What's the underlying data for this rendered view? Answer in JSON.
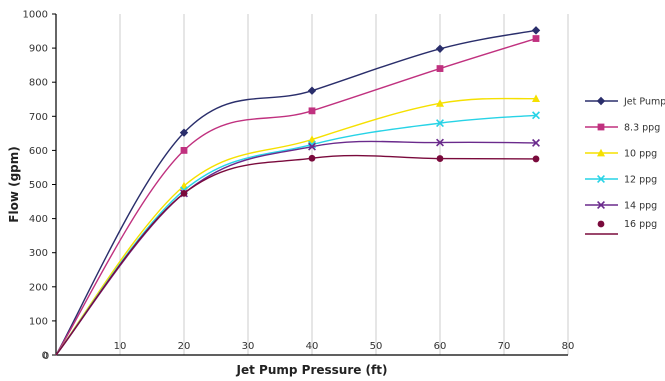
{
  "chart_data": {
    "type": "line",
    "xlabel": "Jet Pump Pressure (ft)",
    "ylabel": "Flow (gpm)",
    "xlim": [
      0,
      80
    ],
    "ylim": [
      0,
      1000
    ],
    "xticks": [
      10,
      20,
      30,
      40,
      50,
      60,
      70,
      80
    ],
    "yticks": [
      0,
      100,
      200,
      300,
      400,
      500,
      600,
      700,
      800,
      900,
      1000
    ],
    "grid": "vertical",
    "legend_position": "right",
    "x": [
      0,
      20,
      40,
      60,
      75
    ],
    "series": [
      {
        "name": "Jet Pump",
        "color": "#2a2e6b",
        "marker": "diamond",
        "values": [
          0,
          652,
          775,
          898,
          952
        ]
      },
      {
        "name": "8.3 ppg",
        "color": "#c0317f",
        "marker": "square",
        "values": [
          0,
          600,
          716,
          840,
          928
        ]
      },
      {
        "name": "10 ppg",
        "color": "#f5e000",
        "marker": "triangle",
        "values": [
          0,
          496,
          632,
          738,
          752
        ]
      },
      {
        "name": "12 ppg",
        "color": "#27d3e6",
        "marker": "x",
        "values": [
          0,
          483,
          617,
          680,
          703
        ]
      },
      {
        "name": "14 ppg",
        "color": "#6a2a8c",
        "marker": "x",
        "values": [
          0,
          474,
          611,
          623,
          622
        ]
      },
      {
        "name": "16 ppg",
        "color": "#7a0a3c",
        "marker": "circle",
        "values": [
          0,
          474,
          577,
          576,
          575
        ]
      }
    ]
  }
}
